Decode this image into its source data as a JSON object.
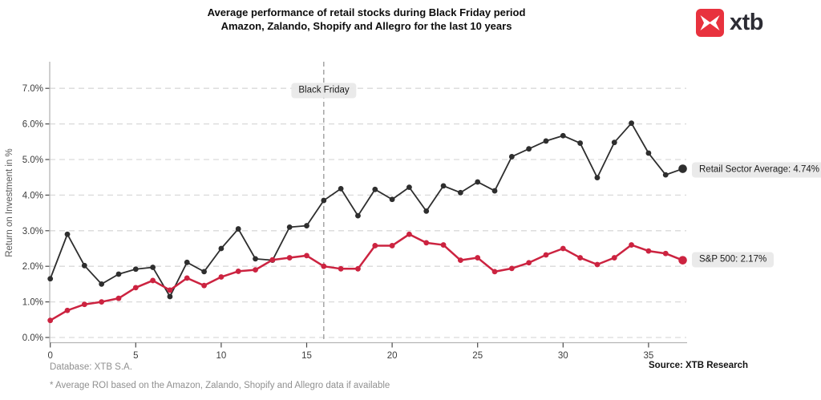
{
  "title": {
    "line1": "Average performance of retail stocks during Black Friday period",
    "line2": "Amazon, Zalando, Shopify and Allegro for the last 10 years"
  },
  "logo": {
    "wordmark": "xtb",
    "color": "#e8323e"
  },
  "chart_data": {
    "type": "line",
    "title": "Average performance of retail stocks during Black Friday period — Amazon, Zalando, Shopify and Allegro for the last 10 years",
    "xlabel": "",
    "ylabel": "Return on Investment in %",
    "xlim": [
      0,
      37
    ],
    "ylim": [
      0,
      7.7
    ],
    "grid": "horizontal-dashed",
    "legend": "end-of-line-labels",
    "x": [
      0,
      1,
      2,
      3,
      4,
      5,
      6,
      7,
      8,
      9,
      10,
      11,
      12,
      13,
      14,
      15,
      16,
      17,
      18,
      19,
      20,
      21,
      22,
      23,
      24,
      25,
      26,
      27,
      28,
      29,
      30,
      31,
      32,
      33,
      34,
      35,
      36,
      37
    ],
    "x_tick_values": [
      0,
      5,
      10,
      15,
      20,
      25,
      30,
      35
    ],
    "y_tick_values": [
      0,
      1,
      2,
      3,
      4,
      5,
      6,
      7
    ],
    "y_tick_labels": [
      "0.0%",
      "1.0%",
      "2.0%",
      "3.0%",
      "4.0%",
      "5.0%",
      "6.0%",
      "7.0%"
    ],
    "series": [
      {
        "name": "Retail Sector Average",
        "color": "#2e2e2e",
        "end_label": "Retail Sector Average: 4.74%",
        "final_value": 4.74,
        "values": [
          1.65,
          2.9,
          2.02,
          1.5,
          1.78,
          1.92,
          1.97,
          1.15,
          2.11,
          1.85,
          2.5,
          3.05,
          2.21,
          2.17,
          3.1,
          3.14,
          3.85,
          4.18,
          3.42,
          4.16,
          3.88,
          4.22,
          3.55,
          4.26,
          4.07,
          4.37,
          4.12,
          5.08,
          5.3,
          5.52,
          5.67,
          5.46,
          4.49,
          5.48,
          6.02,
          5.18,
          4.57,
          4.74
        ]
      },
      {
        "name": "S&P 500",
        "color": "#cc2340",
        "end_label": "S&P 500: 2.17%",
        "final_value": 2.17,
        "values": [
          0.48,
          0.76,
          0.93,
          1.0,
          1.1,
          1.4,
          1.6,
          1.33,
          1.67,
          1.46,
          1.7,
          1.86,
          1.9,
          2.18,
          2.24,
          2.3,
          2.0,
          1.93,
          1.93,
          2.58,
          2.58,
          2.9,
          2.66,
          2.6,
          2.17,
          2.24,
          1.85,
          1.94,
          2.1,
          2.32,
          2.5,
          2.24,
          2.05,
          2.24,
          2.6,
          2.43,
          2.36,
          2.17
        ]
      }
    ],
    "annotation": {
      "label": "Black Friday",
      "x": 16
    }
  },
  "footer": {
    "database": "Database: XTB S.A.",
    "note": "* Average ROI based on the Amazon, Zalando, Shopify and Allegro data if available",
    "source": "Source: XTB Research"
  }
}
